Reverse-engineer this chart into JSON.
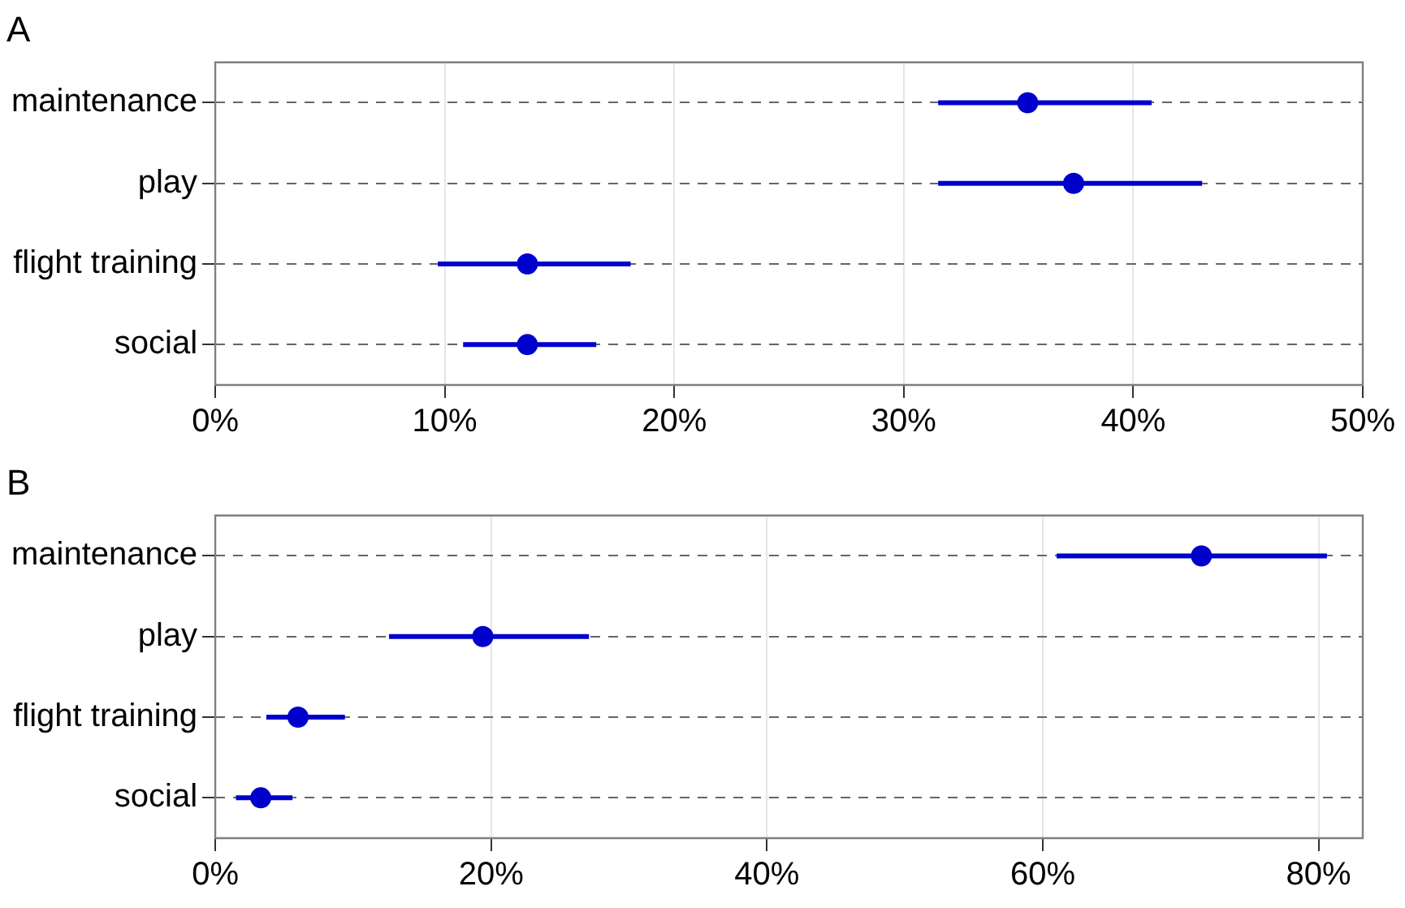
{
  "chart_data": [
    {
      "type": "scatter",
      "title": "A",
      "orientation": "horizontal",
      "categories": [
        "maintenance",
        "play",
        "flight training",
        "social"
      ],
      "values": [
        35.4,
        37.4,
        13.6,
        13.6
      ],
      "errors": [
        [
          31.5,
          40.8
        ],
        [
          31.5,
          43.0
        ],
        [
          9.7,
          18.1
        ],
        [
          10.8,
          16.6
        ]
      ],
      "color": "#0000cc",
      "marker": "circle",
      "grid": true,
      "xlim": [
        0,
        50
      ],
      "xticks": [
        {
          "value": 0,
          "label": "0%"
        },
        {
          "value": 10,
          "label": "10%"
        },
        {
          "value": 20,
          "label": "20%"
        },
        {
          "value": 30,
          "label": "30%"
        },
        {
          "value": 40,
          "label": "40%"
        },
        {
          "value": 50,
          "label": "50%"
        }
      ]
    },
    {
      "type": "scatter",
      "title": "B",
      "orientation": "horizontal",
      "categories": [
        "maintenance",
        "play",
        "flight training",
        "social"
      ],
      "values": [
        71.5,
        19.4,
        6.0,
        3.3
      ],
      "errors": [
        [
          61.0,
          80.6
        ],
        [
          12.6,
          27.1
        ],
        [
          3.7,
          9.4
        ],
        [
          1.5,
          5.6
        ]
      ],
      "color": "#0000cc",
      "marker": "circle",
      "grid": true,
      "xlim": [
        0,
        83.2
      ],
      "xticks": [
        {
          "value": 0,
          "label": "0%"
        },
        {
          "value": 20,
          "label": "20%"
        },
        {
          "value": 40,
          "label": "40%"
        },
        {
          "value": 60,
          "label": "60%"
        },
        {
          "value": 80,
          "label": "80%"
        }
      ]
    }
  ]
}
